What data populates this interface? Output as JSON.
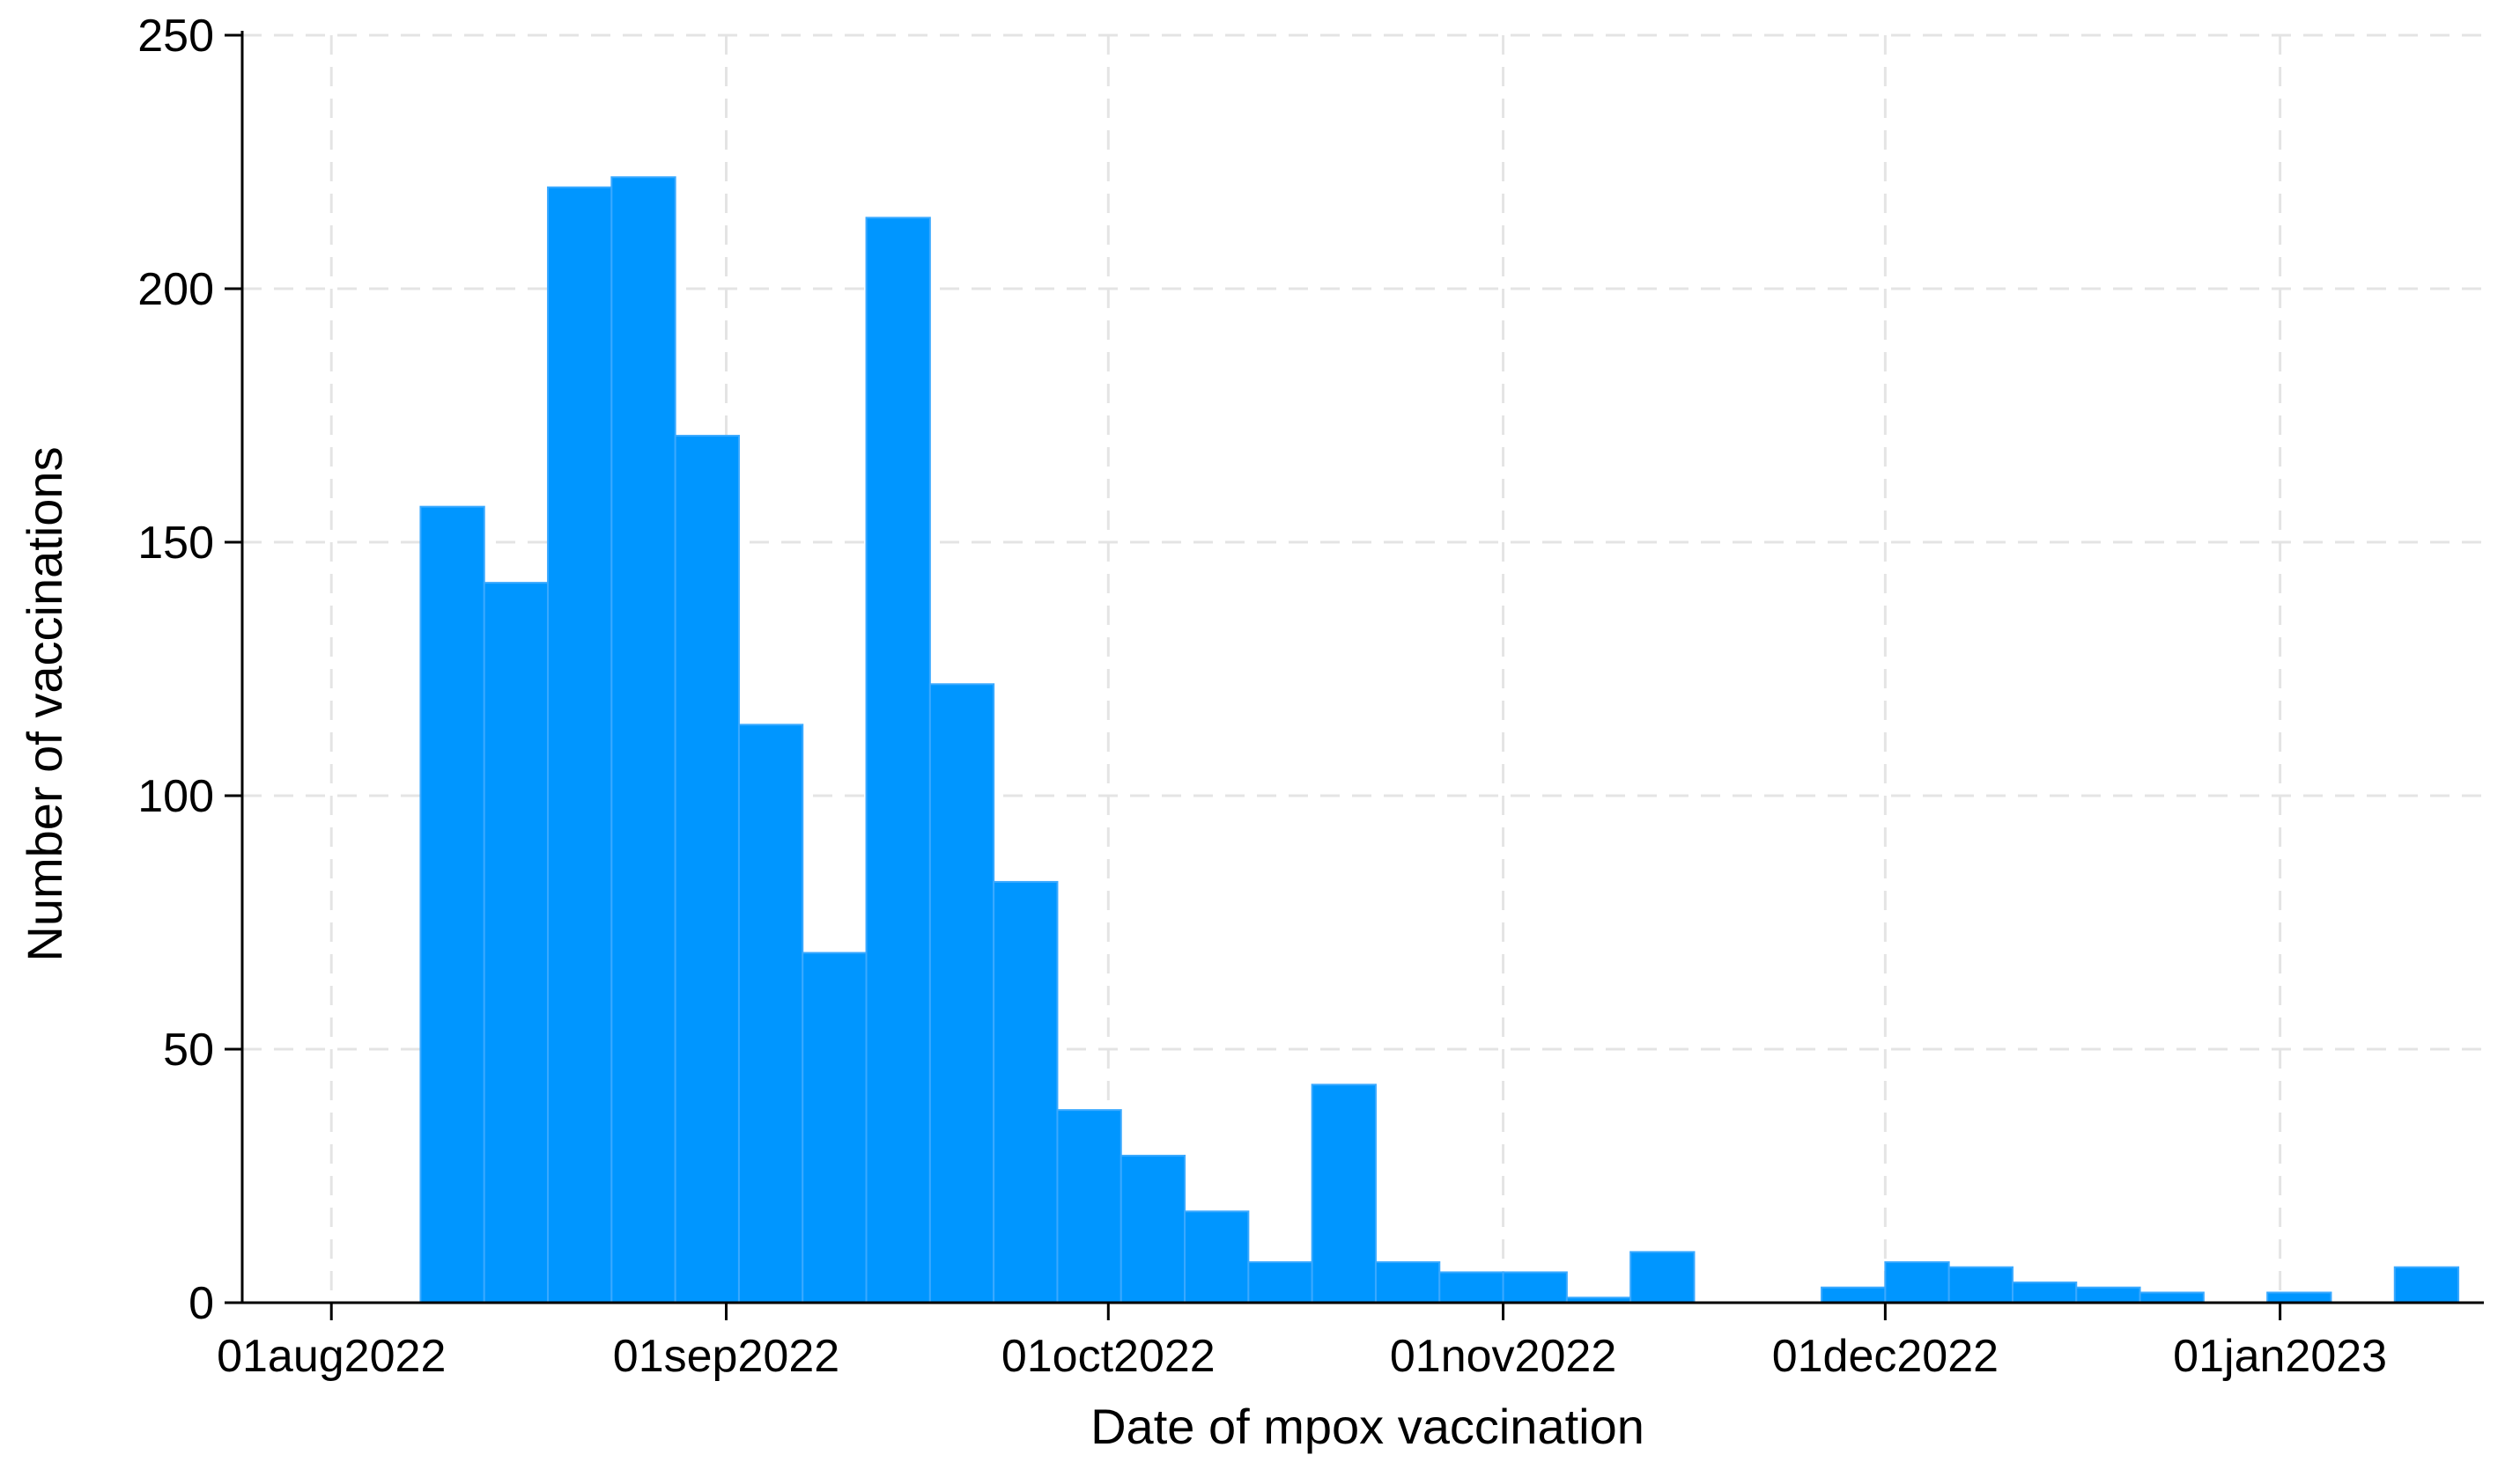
{
  "chart_data": {
    "type": "bar",
    "title": "",
    "xlabel": "Date of mpox vaccination",
    "ylabel": "Number of vaccinations",
    "ylim": [
      0,
      250
    ],
    "xlim": [
      "2022-07-25",
      "2023-01-17"
    ],
    "bar_width_days": 5,
    "grid": true,
    "legend": "none",
    "bar_color": "#0096ff",
    "bar_edge_color": "#3aa9ff",
    "y_ticks": [
      0,
      50,
      100,
      150,
      200,
      250
    ],
    "x_ticks": [
      {
        "date": "2022-08-01",
        "label": "01aug2022"
      },
      {
        "date": "2022-09-01",
        "label": "01sep2022"
      },
      {
        "date": "2022-10-01",
        "label": "01oct2022"
      },
      {
        "date": "2022-11-01",
        "label": "01nov2022"
      },
      {
        "date": "2022-12-01",
        "label": "01dec2022"
      },
      {
        "date": "2023-01-01",
        "label": "01jan2023"
      }
    ],
    "bins": [
      {
        "start": "2022-08-08",
        "value": 157
      },
      {
        "start": "2022-08-13",
        "value": 142
      },
      {
        "start": "2022-08-18",
        "value": 220
      },
      {
        "start": "2022-08-23",
        "value": 222
      },
      {
        "start": "2022-08-28",
        "value": 171
      },
      {
        "start": "2022-09-02",
        "value": 114
      },
      {
        "start": "2022-09-07",
        "value": 69
      },
      {
        "start": "2022-09-12",
        "value": 214
      },
      {
        "start": "2022-09-17",
        "value": 122
      },
      {
        "start": "2022-09-22",
        "value": 83
      },
      {
        "start": "2022-09-27",
        "value": 38
      },
      {
        "start": "2022-10-02",
        "value": 29
      },
      {
        "start": "2022-10-07",
        "value": 18
      },
      {
        "start": "2022-10-12",
        "value": 8
      },
      {
        "start": "2022-10-17",
        "value": 43
      },
      {
        "start": "2022-10-22",
        "value": 8
      },
      {
        "start": "2022-10-27",
        "value": 6
      },
      {
        "start": "2022-11-01",
        "value": 6
      },
      {
        "start": "2022-11-06",
        "value": 1
      },
      {
        "start": "2022-11-11",
        "value": 10
      },
      {
        "start": "2022-11-16",
        "value": 0
      },
      {
        "start": "2022-11-21",
        "value": 0
      },
      {
        "start": "2022-11-26",
        "value": 3
      },
      {
        "start": "2022-12-01",
        "value": 8
      },
      {
        "start": "2022-12-06",
        "value": 7
      },
      {
        "start": "2022-12-11",
        "value": 4
      },
      {
        "start": "2022-12-16",
        "value": 3
      },
      {
        "start": "2022-12-21",
        "value": 2
      },
      {
        "start": "2022-12-26",
        "value": 0
      },
      {
        "start": "2022-12-31",
        "value": 2
      },
      {
        "start": "2023-01-05",
        "value": 0
      },
      {
        "start": "2023-01-10",
        "value": 7
      }
    ]
  }
}
